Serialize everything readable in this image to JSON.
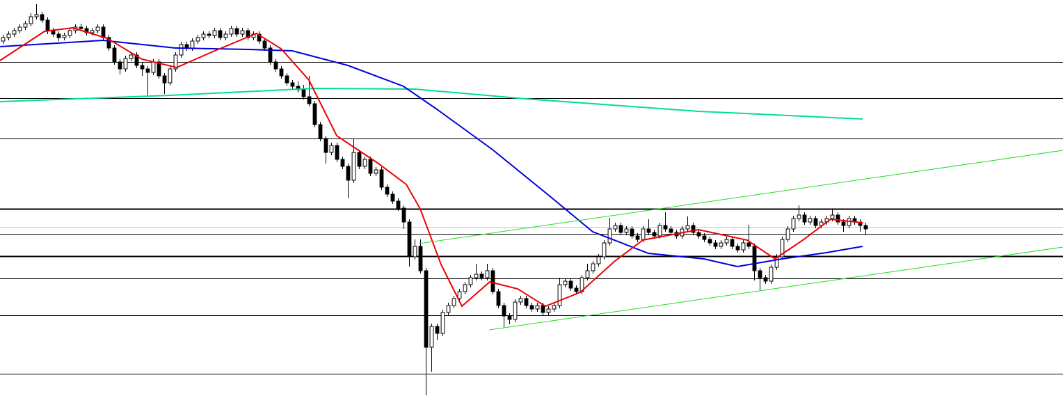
{
  "chart_data": {
    "type": "candlestick",
    "xlim": [
      -0.5,
      190.5
    ],
    "ylim": [
      0,
      569
    ],
    "up_color": "#ffffff",
    "down_color": "#000000",
    "wick_color": "#000000",
    "levels": [
      {
        "value": 480,
        "style": "thin"
      },
      {
        "value": 428,
        "style": "thin"
      },
      {
        "value": 370,
        "style": "thin"
      },
      {
        "value": 269,
        "style": "thick"
      },
      {
        "value": 243,
        "style": "faint"
      },
      {
        "value": 233,
        "style": "thin"
      },
      {
        "value": 201,
        "style": "thick"
      },
      {
        "value": 169,
        "style": "thin"
      },
      {
        "value": 116,
        "style": "thin"
      },
      {
        "value": 32,
        "style": "thin"
      }
    ],
    "lines": [
      {
        "color": "#00e08a",
        "width": 2,
        "x": [
          -0.5,
          30,
          56,
          74,
          94,
          125,
          154.5
        ],
        "values": [
          423,
          432,
          442,
          441,
          427,
          409,
          398
        ]
      },
      {
        "color": "#0000dd",
        "width": 2,
        "x": [
          -0.5,
          18,
          31,
          44,
          52,
          62,
          72,
          78,
          88,
          98,
          106,
          116,
          126,
          132,
          140,
          148,
          154.5
        ],
        "values": [
          502,
          511,
          500,
          498,
          496,
          475,
          445,
          412,
          354,
          289,
          236,
          205,
          197,
          186,
          197,
          206,
          215
        ]
      },
      {
        "color": "#ee0000",
        "width": 2,
        "x": [
          -0.5,
          7.5,
          12.5,
          18.75,
          25,
          31.25,
          37.5,
          45.6,
          50,
          55,
          60,
          67.5,
          72.5,
          75,
          78.75,
          82.5,
          87.5,
          92.5,
          97.5,
          103.75,
          110,
          115,
          125,
          133.75,
          138.75,
          143.75,
          148.75,
          154.5
        ],
        "values": [
          482,
          524,
          529,
          514,
          484,
          472,
          494,
          521,
          499,
          454,
          374,
          334,
          304,
          269,
          189,
          129,
          164,
          154,
          129,
          149,
          194,
          224,
          239,
          224,
          197,
          224,
          254,
          249
        ]
      },
      {
        "color": "#22dd22",
        "width": 1,
        "x": [
          74.75,
          190.5
        ],
        "values": [
          219,
          353
        ]
      },
      {
        "color": "#22dd22",
        "width": 1,
        "x": [
          87.4,
          190.5
        ],
        "values": [
          95,
          214
        ]
      }
    ],
    "candles": [
      [
        510,
        519,
        506,
        515
      ],
      [
        515,
        524,
        511,
        520
      ],
      [
        520,
        529,
        516,
        525
      ],
      [
        525,
        534,
        521,
        530
      ],
      [
        530,
        539,
        526,
        535
      ],
      [
        535,
        550,
        531,
        545
      ],
      [
        545,
        563,
        541,
        548
      ],
      [
        548,
        552,
        536,
        540
      ],
      [
        540,
        544,
        520,
        525
      ],
      [
        525,
        529,
        516,
        520
      ],
      [
        520,
        524,
        510,
        515
      ],
      [
        515,
        522,
        511,
        518
      ],
      [
        518,
        529,
        514,
        525
      ],
      [
        525,
        534,
        521,
        530
      ],
      [
        530,
        535,
        524,
        528
      ],
      [
        528,
        532,
        518,
        522
      ],
      [
        522,
        529,
        518,
        525
      ],
      [
        525,
        534,
        521,
        530
      ],
      [
        530,
        534,
        511,
        515
      ],
      [
        515,
        519,
        496,
        500
      ],
      [
        500,
        504,
        476,
        480
      ],
      [
        480,
        484,
        462,
        470
      ],
      [
        470,
        489,
        466,
        485
      ],
      [
        485,
        494,
        481,
        490
      ],
      [
        490,
        494,
        471,
        475
      ],
      [
        475,
        479,
        460,
        470
      ],
      [
        470,
        474,
        432,
        465
      ],
      [
        465,
        484,
        461,
        480
      ],
      [
        480,
        484,
        456,
        460
      ],
      [
        460,
        464,
        434,
        450
      ],
      [
        450,
        474,
        446,
        470
      ],
      [
        470,
        494,
        466,
        490
      ],
      [
        490,
        509,
        486,
        505
      ],
      [
        505,
        509,
        496,
        500
      ],
      [
        500,
        514,
        496,
        510
      ],
      [
        510,
        519,
        506,
        515
      ],
      [
        515,
        524,
        511,
        520
      ],
      [
        520,
        524,
        514,
        518
      ],
      [
        518,
        529,
        514,
        525
      ],
      [
        525,
        529,
        511,
        515
      ],
      [
        515,
        524,
        511,
        520
      ],
      [
        520,
        532,
        516,
        528
      ],
      [
        528,
        532,
        516,
        520
      ],
      [
        520,
        529,
        516,
        525
      ],
      [
        525,
        529,
        511,
        515
      ],
      [
        515,
        524,
        511,
        520
      ],
      [
        520,
        524,
        506,
        510
      ],
      [
        510,
        514,
        496,
        500
      ],
      [
        500,
        504,
        476,
        480
      ],
      [
        480,
        484,
        466,
        470
      ],
      [
        470,
        474,
        456,
        460
      ],
      [
        460,
        464,
        446,
        450
      ],
      [
        450,
        454,
        441,
        445
      ],
      [
        445,
        452,
        436,
        440
      ],
      [
        440,
        447,
        426,
        430
      ],
      [
        430,
        460,
        416,
        420
      ],
      [
        420,
        424,
        386,
        390
      ],
      [
        390,
        394,
        366,
        370
      ],
      [
        370,
        374,
        334,
        350
      ],
      [
        350,
        364,
        346,
        360
      ],
      [
        360,
        364,
        336,
        340
      ],
      [
        340,
        344,
        326,
        330
      ],
      [
        330,
        334,
        284,
        310
      ],
      [
        310,
        369,
        306,
        350
      ],
      [
        350,
        354,
        326,
        330
      ],
      [
        330,
        344,
        326,
        340
      ],
      [
        340,
        344,
        316,
        320
      ],
      [
        320,
        329,
        316,
        325
      ],
      [
        325,
        329,
        296,
        300
      ],
      [
        300,
        304,
        286,
        290
      ],
      [
        290,
        294,
        276,
        280
      ],
      [
        280,
        284,
        266,
        270
      ],
      [
        270,
        274,
        240,
        250
      ],
      [
        250,
        254,
        186,
        200
      ],
      [
        200,
        225,
        196,
        215
      ],
      [
        215,
        225,
        176,
        180
      ],
      [
        180,
        184,
        1,
        70
      ],
      [
        70,
        104,
        35,
        100
      ],
      [
        100,
        104,
        80,
        90
      ],
      [
        90,
        124,
        86,
        120
      ],
      [
        120,
        134,
        116,
        130
      ],
      [
        130,
        144,
        126,
        140
      ],
      [
        140,
        154,
        136,
        150
      ],
      [
        150,
        164,
        146,
        160
      ],
      [
        160,
        174,
        156,
        170
      ],
      [
        170,
        190,
        166,
        175
      ],
      [
        175,
        179,
        166,
        170
      ],
      [
        170,
        190,
        166,
        180
      ],
      [
        180,
        184,
        146,
        150
      ],
      [
        150,
        154,
        126,
        130
      ],
      [
        130,
        134,
        99,
        115
      ],
      [
        115,
        119,
        103,
        110
      ],
      [
        110,
        139,
        106,
        135
      ],
      [
        135,
        144,
        131,
        140
      ],
      [
        140,
        144,
        126,
        130
      ],
      [
        130,
        134,
        121,
        125
      ],
      [
        125,
        134,
        121,
        130
      ],
      [
        130,
        134,
        116,
        120
      ],
      [
        120,
        129,
        116,
        125
      ],
      [
        125,
        134,
        121,
        130
      ],
      [
        130,
        170,
        126,
        160
      ],
      [
        160,
        169,
        156,
        165
      ],
      [
        165,
        169,
        151,
        155
      ],
      [
        155,
        159,
        146,
        150
      ],
      [
        150,
        174,
        146,
        170
      ],
      [
        170,
        190,
        166,
        180
      ],
      [
        180,
        194,
        176,
        190
      ],
      [
        190,
        204,
        186,
        200
      ],
      [
        200,
        224,
        196,
        220
      ],
      [
        220,
        256,
        216,
        240
      ],
      [
        240,
        249,
        236,
        245
      ],
      [
        245,
        249,
        231,
        235
      ],
      [
        235,
        244,
        231,
        240
      ],
      [
        240,
        244,
        226,
        230
      ],
      [
        230,
        234,
        221,
        225
      ],
      [
        225,
        244,
        221,
        240
      ],
      [
        240,
        254,
        231,
        235
      ],
      [
        235,
        239,
        226,
        230
      ],
      [
        230,
        249,
        226,
        245
      ],
      [
        245,
        264,
        236,
        240
      ],
      [
        240,
        244,
        231,
        235
      ],
      [
        235,
        239,
        226,
        230
      ],
      [
        230,
        244,
        226,
        240
      ],
      [
        240,
        258,
        236,
        245
      ],
      [
        245,
        249,
        231,
        235
      ],
      [
        235,
        239,
        226,
        230
      ],
      [
        230,
        234,
        221,
        225
      ],
      [
        225,
        229,
        216,
        220
      ],
      [
        220,
        224,
        211,
        215
      ],
      [
        215,
        224,
        211,
        220
      ],
      [
        220,
        229,
        216,
        225
      ],
      [
        225,
        229,
        211,
        215
      ],
      [
        215,
        219,
        206,
        210
      ],
      [
        210,
        224,
        206,
        220
      ],
      [
        220,
        246,
        211,
        215
      ],
      [
        215,
        219,
        166,
        180
      ],
      [
        180,
        184,
        152,
        170
      ],
      [
        170,
        174,
        161,
        165
      ],
      [
        165,
        189,
        161,
        185
      ],
      [
        185,
        204,
        181,
        200
      ],
      [
        200,
        229,
        196,
        225
      ],
      [
        225,
        244,
        221,
        240
      ],
      [
        240,
        259,
        236,
        255
      ],
      [
        255,
        274,
        251,
        260
      ],
      [
        260,
        264,
        246,
        250
      ],
      [
        250,
        259,
        246,
        255
      ],
      [
        255,
        259,
        241,
        245
      ],
      [
        245,
        254,
        241,
        250
      ],
      [
        250,
        259,
        246,
        255
      ],
      [
        255,
        268,
        251,
        260
      ],
      [
        260,
        264,
        246,
        250
      ],
      [
        250,
        254,
        236,
        245
      ],
      [
        245,
        259,
        241,
        255
      ],
      [
        255,
        259,
        246,
        250
      ],
      [
        250,
        254,
        236,
        245
      ],
      [
        245,
        249,
        231,
        240
      ]
    ]
  }
}
